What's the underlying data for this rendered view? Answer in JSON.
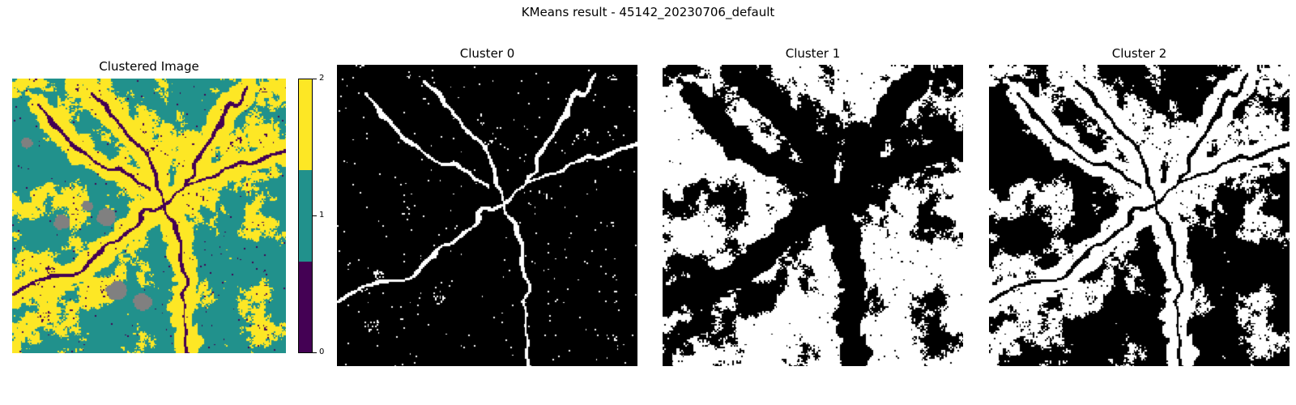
{
  "figure": {
    "title": "KMeans result - 45142_20230706_default"
  },
  "panels": {
    "clustered": {
      "title": "Clustered Image"
    },
    "cluster0": {
      "title": "Cluster 0"
    },
    "cluster1": {
      "title": "Cluster 1"
    },
    "cluster2": {
      "title": "Cluster 2"
    }
  },
  "colorbar": {
    "ticks": [
      "0",
      "1",
      "2"
    ],
    "colors": {
      "c0": "#440154",
      "c1": "#21918c",
      "c2": "#fde725",
      "nodata": "#808080"
    }
  }
}
